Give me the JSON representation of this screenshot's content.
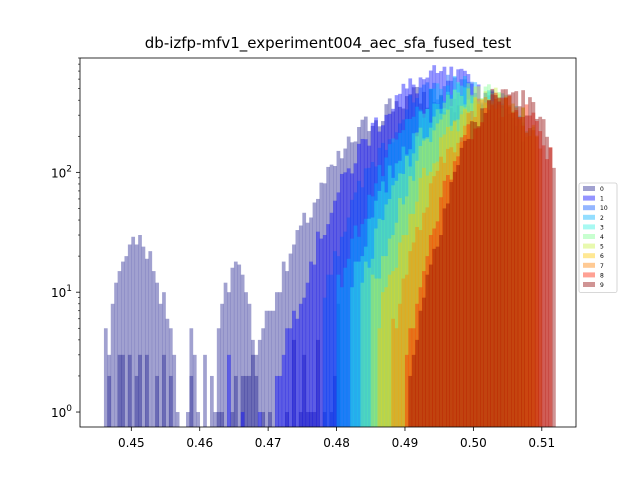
{
  "chart_data": {
    "type": "histogram",
    "title": "db-izfp-mfv1_experiment004_aec_sfa_fused_test",
    "xlabel": "",
    "ylabel": "",
    "xlim": [
      0.4425,
      0.515
    ],
    "ylim": [
      0.75,
      900
    ],
    "yscale": "log",
    "x_ticks": [
      {
        "value": 0.45,
        "label": "0.45"
      },
      {
        "value": 0.46,
        "label": "0.46"
      },
      {
        "value": 0.47,
        "label": "0.47"
      },
      {
        "value": 0.48,
        "label": "0.48"
      },
      {
        "value": 0.49,
        "label": "0.49"
      },
      {
        "value": 0.5,
        "label": "0.50"
      },
      {
        "value": 0.51,
        "label": "0.51"
      }
    ],
    "y_ticks": [
      {
        "value": 1,
        "mantissa": "10",
        "exponent": "0"
      },
      {
        "value": 10,
        "mantissa": "10",
        "exponent": "1"
      },
      {
        "value": 100,
        "mantissa": "10",
        "exponent": "2"
      }
    ],
    "legend_position": "right, outside the plot",
    "grid": false,
    "bin_width": 0.0005,
    "series": [
      {
        "name": "0",
        "color": "#1f1f8f",
        "main": {
          "center": 0.4925,
          "sigma": 0.0078,
          "peak": 430,
          "lo": 0.4465,
          "hi": 0.503
        },
        "extra_bars": [
          [
            0.446,
            5
          ],
          [
            0.4465,
            3
          ],
          [
            0.447,
            8
          ],
          [
            0.4475,
            12
          ],
          [
            0.448,
            15
          ],
          [
            0.4485,
            18
          ],
          [
            0.449,
            20
          ],
          [
            0.4495,
            25
          ],
          [
            0.45,
            29
          ],
          [
            0.4505,
            25
          ],
          [
            0.451,
            30
          ],
          [
            0.4515,
            24
          ],
          [
            0.452,
            19
          ],
          [
            0.4525,
            22
          ],
          [
            0.453,
            15
          ],
          [
            0.4535,
            12
          ],
          [
            0.454,
            8
          ],
          [
            0.4545,
            10
          ],
          [
            0.455,
            6
          ],
          [
            0.4555,
            5
          ],
          [
            0.456,
            3
          ],
          [
            0.4565,
            1
          ],
          [
            0.458,
            1
          ],
          [
            0.4585,
            5
          ],
          [
            0.459,
            3
          ],
          [
            0.4595,
            1
          ],
          [
            0.462,
            1
          ],
          [
            0.4625,
            5
          ],
          [
            0.463,
            8
          ],
          [
            0.4635,
            12
          ],
          [
            0.464,
            10
          ],
          [
            0.4645,
            16
          ],
          [
            0.465,
            18
          ],
          [
            0.4655,
            17
          ],
          [
            0.466,
            14
          ],
          [
            0.4665,
            10
          ],
          [
            0.467,
            8
          ],
          [
            0.4675,
            4
          ],
          [
            0.468,
            2
          ],
          [
            0.469,
            1
          ],
          [
            0.47,
            1
          ],
          [
            0.4725,
            1
          ],
          [
            0.4735,
            4
          ],
          [
            0.4745,
            1
          ],
          [
            0.475,
            3
          ],
          [
            0.4755,
            1
          ],
          [
            0.476,
            1
          ],
          [
            0.4765,
            1
          ],
          [
            0.477,
            4
          ],
          [
            0.478,
            1
          ],
          [
            0.479,
            1
          ],
          [
            0.4795,
            2
          ],
          [
            0.48,
            8
          ]
        ]
      },
      {
        "name": "1",
        "color": "#0000ff",
        "main": {
          "center": 0.4955,
          "sigma": 0.0072,
          "peak": 640,
          "lo": 0.464,
          "hi": 0.504
        }
      },
      {
        "name": "10",
        "color": "#0050ff",
        "main": {
          "center": 0.497,
          "sigma": 0.0068,
          "peak": 540,
          "lo": 0.478,
          "hi": 0.505
        }
      },
      {
        "name": "2",
        "color": "#00b0ff",
        "main": {
          "center": 0.4985,
          "sigma": 0.0066,
          "peak": 520,
          "lo": 0.48,
          "hi": 0.506
        }
      },
      {
        "name": "3",
        "color": "#30f0e0",
        "main": {
          "center": 0.4995,
          "sigma": 0.0064,
          "peak": 500,
          "lo": 0.482,
          "hi": 0.507
        }
      },
      {
        "name": "4",
        "color": "#7cff90",
        "main": {
          "center": 0.5005,
          "sigma": 0.0062,
          "peak": 470,
          "lo": 0.4835,
          "hi": 0.508
        }
      },
      {
        "name": "5",
        "color": "#c8f040",
        "main": {
          "center": 0.5015,
          "sigma": 0.006,
          "peak": 440,
          "lo": 0.485,
          "hi": 0.5085
        }
      },
      {
        "name": "6",
        "color": "#ffc800",
        "main": {
          "center": 0.5025,
          "sigma": 0.0056,
          "peak": 410,
          "lo": 0.486,
          "hi": 0.509
        }
      },
      {
        "name": "7",
        "color": "#ff8000",
        "main": {
          "center": 0.5035,
          "sigma": 0.0052,
          "peak": 390,
          "lo": 0.488,
          "hi": 0.5095
        }
      },
      {
        "name": "8",
        "color": "#ff2000",
        "main": {
          "center": 0.5045,
          "sigma": 0.0046,
          "peak": 420,
          "lo": 0.49,
          "hi": 0.511
        }
      },
      {
        "name": "9",
        "color": "#900000",
        "main": {
          "center": 0.505,
          "sigma": 0.0044,
          "peak": 470,
          "lo": 0.4905,
          "hi": 0.5115
        }
      }
    ]
  }
}
